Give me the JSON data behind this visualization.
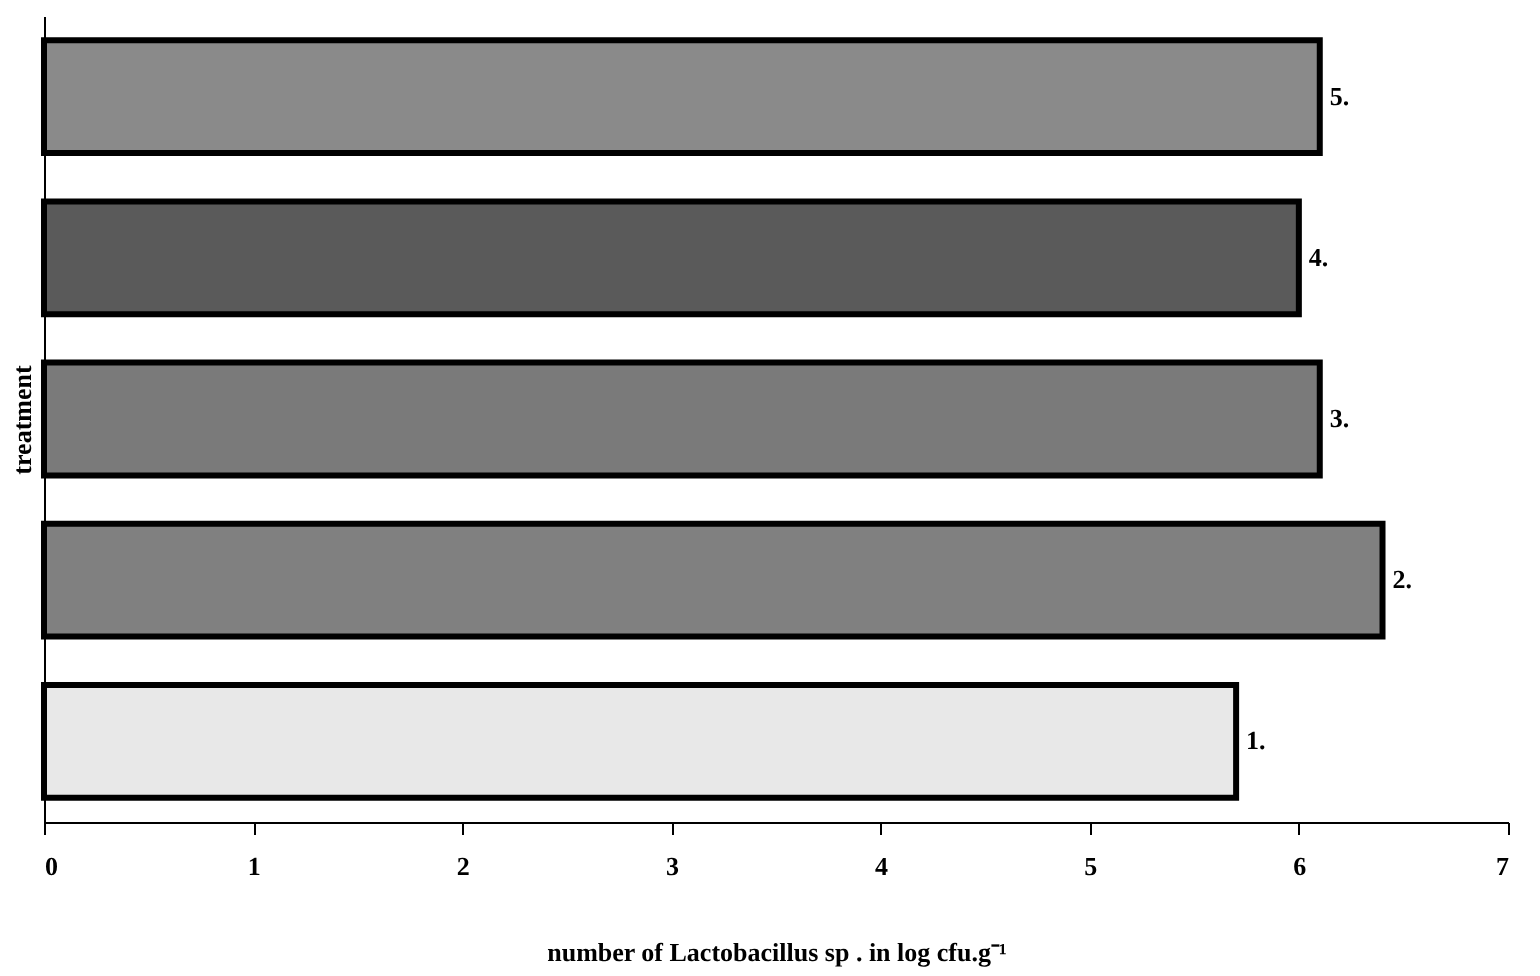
{
  "chart_data": {
    "type": "bar",
    "orientation": "horizontal",
    "categories": [
      "5.",
      "4.",
      "3.",
      "2.",
      "1."
    ],
    "values": [
      6.1,
      6.0,
      6.1,
      6.4,
      5.7
    ],
    "colors": [
      "#8a8a8a",
      "#5a5a5a",
      "#7a7a7a",
      "#808080",
      "#e8e8e8"
    ],
    "xlim": [
      0,
      7
    ],
    "xticks": [
      0,
      1,
      2,
      3,
      4,
      5,
      6,
      7
    ],
    "xlabel": "number of Lactobacillus sp . in log cfu.g⁻¹",
    "ylabel": "treatment",
    "tick_labels": "x",
    "grid": false
  }
}
